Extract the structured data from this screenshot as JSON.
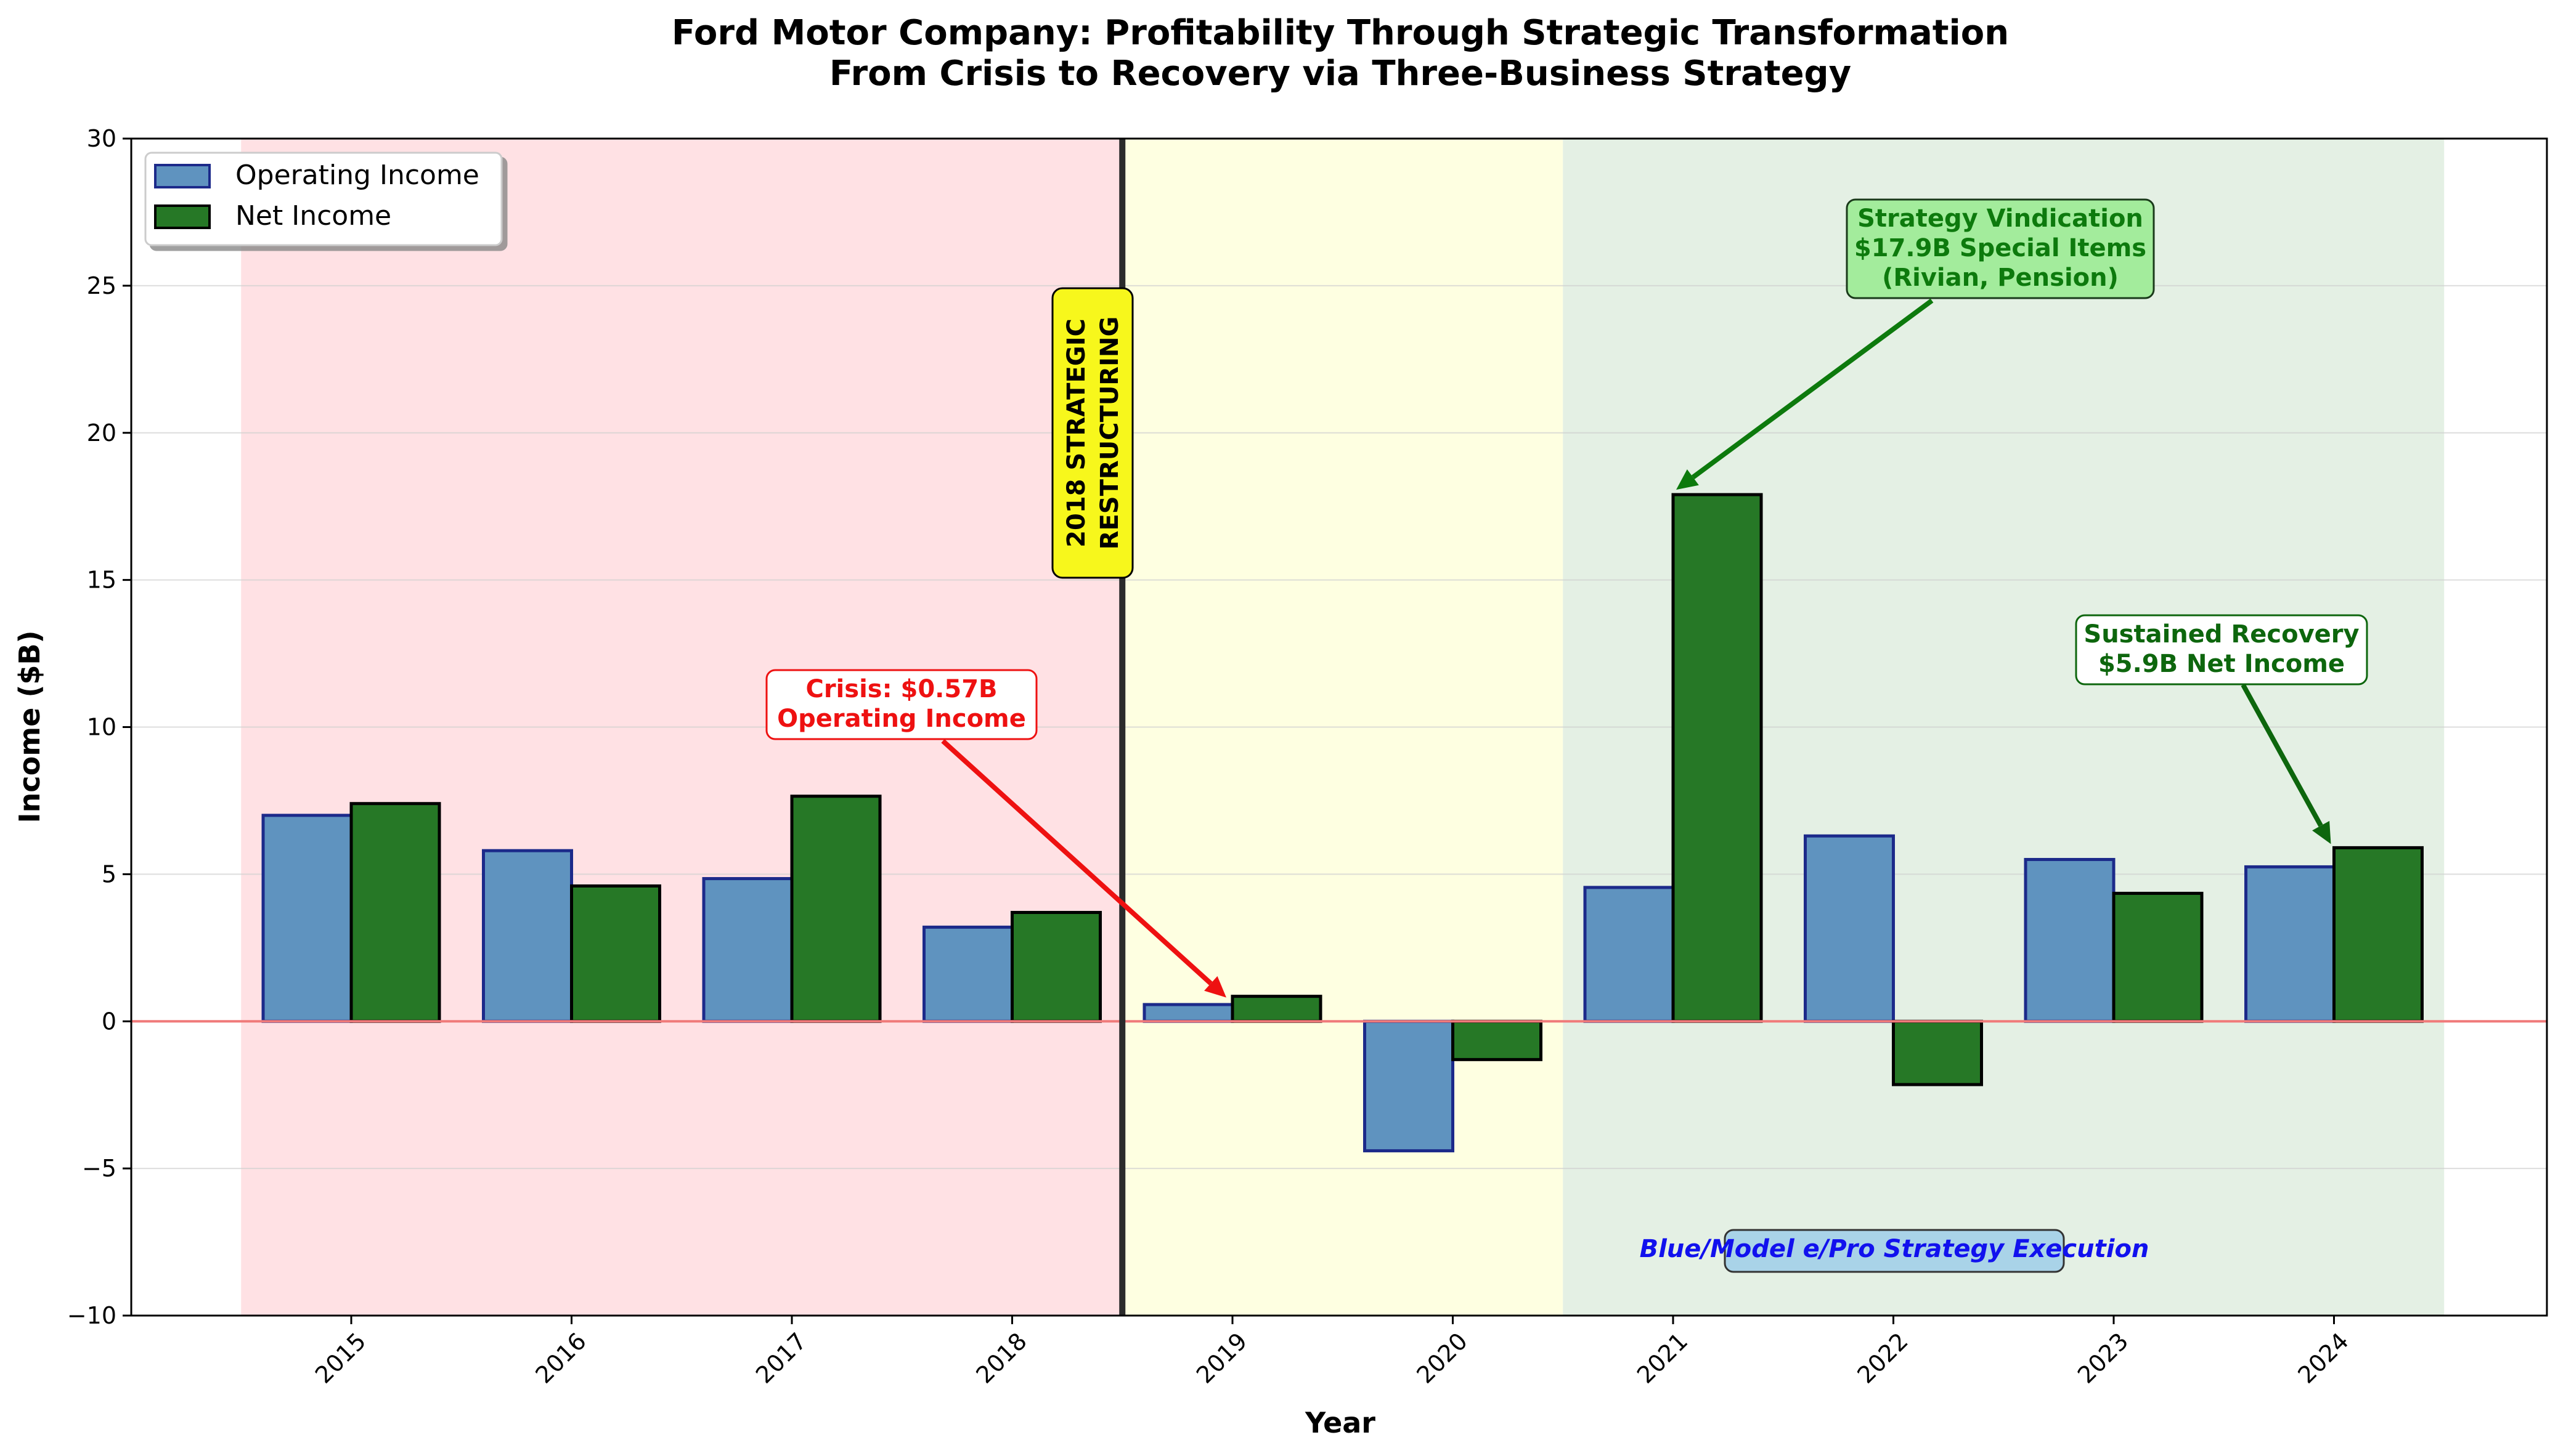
{
  "chart_data": {
    "type": "bar",
    "title": "Ford Motor Company: Profitability Through Strategic Transformation",
    "subtitle": "From Crisis to Recovery via Three-Business Strategy",
    "xlabel": "Year",
    "ylabel": "Income ($B)",
    "ylim": [
      -10,
      30
    ],
    "yticks": [
      -10,
      -5,
      0,
      5,
      10,
      15,
      20,
      25,
      30
    ],
    "ytick_labels": [
      "−10",
      "−5",
      "0",
      "5",
      "10",
      "15",
      "20",
      "25",
      "30"
    ],
    "grid": "horizontal",
    "legend_position": "top-left",
    "categories": [
      "2015",
      "2016",
      "2017",
      "2018",
      "2019",
      "2020",
      "2021",
      "2022",
      "2023",
      "2024"
    ],
    "series": [
      {
        "name": "Operating Income",
        "color": "#5f93bf",
        "edge_color": "#1c2a8a",
        "values": [
          7.0,
          5.8,
          4.85,
          3.2,
          0.57,
          -4.4,
          4.55,
          6.3,
          5.5,
          5.25
        ]
      },
      {
        "name": "Net Income",
        "color": "#267826",
        "edge_color": "#000000",
        "values": [
          7.4,
          4.6,
          7.65,
          3.7,
          0.85,
          -1.3,
          17.9,
          -2.15,
          4.35,
          5.9
        ]
      }
    ],
    "phases": [
      {
        "start_category": "2015",
        "end_category": "2018",
        "color": "#ffe1e4"
      },
      {
        "start_category": "2019",
        "end_category": "2020",
        "color": "#feffe1"
      },
      {
        "start_category": "2021",
        "end_category": "2024",
        "color": "#e4f0e4"
      }
    ],
    "zero_line_color": "#f07a7a",
    "restructuring_line_color": "#2b2b2b",
    "annotations": {
      "restructuring": {
        "lines": [
          "2018 STRATEGIC",
          "RESTRUCTURING"
        ],
        "bg": "#f7f71c",
        "text_color": "#000000"
      },
      "crisis": {
        "lines": [
          "Crisis: $0.57B",
          "Operating Income"
        ],
        "bg": "#ffffff",
        "text_color": "#ee1111",
        "border": "#ee1111",
        "arrow_color": "#ee1111",
        "target": {
          "category": "2019",
          "value": 0.6
        }
      },
      "vindication": {
        "lines": [
          "Strategy Vindication",
          "$17.9B Special Items",
          "(Rivian, Pension)"
        ],
        "bg": "#a3ec9c",
        "text_color": "#0d7a0d",
        "border": "#1a3a1a",
        "arrow_color": "#0d7a0d",
        "target": {
          "category": "2021",
          "value": 17.9
        }
      },
      "recovery": {
        "lines": [
          "Sustained Recovery",
          "$5.9B Net Income"
        ],
        "bg": "#ffffff",
        "text_color": "#0d660d",
        "border": "#0d660d",
        "arrow_color": "#0d660d",
        "target": {
          "category": "2024",
          "value": 5.9
        }
      },
      "execution": {
        "lines": [
          "Blue/Model e/Pro Strategy Execution"
        ],
        "bg": "#a9d3e8",
        "text_color": "#1111ee",
        "border": "#333333"
      }
    }
  }
}
